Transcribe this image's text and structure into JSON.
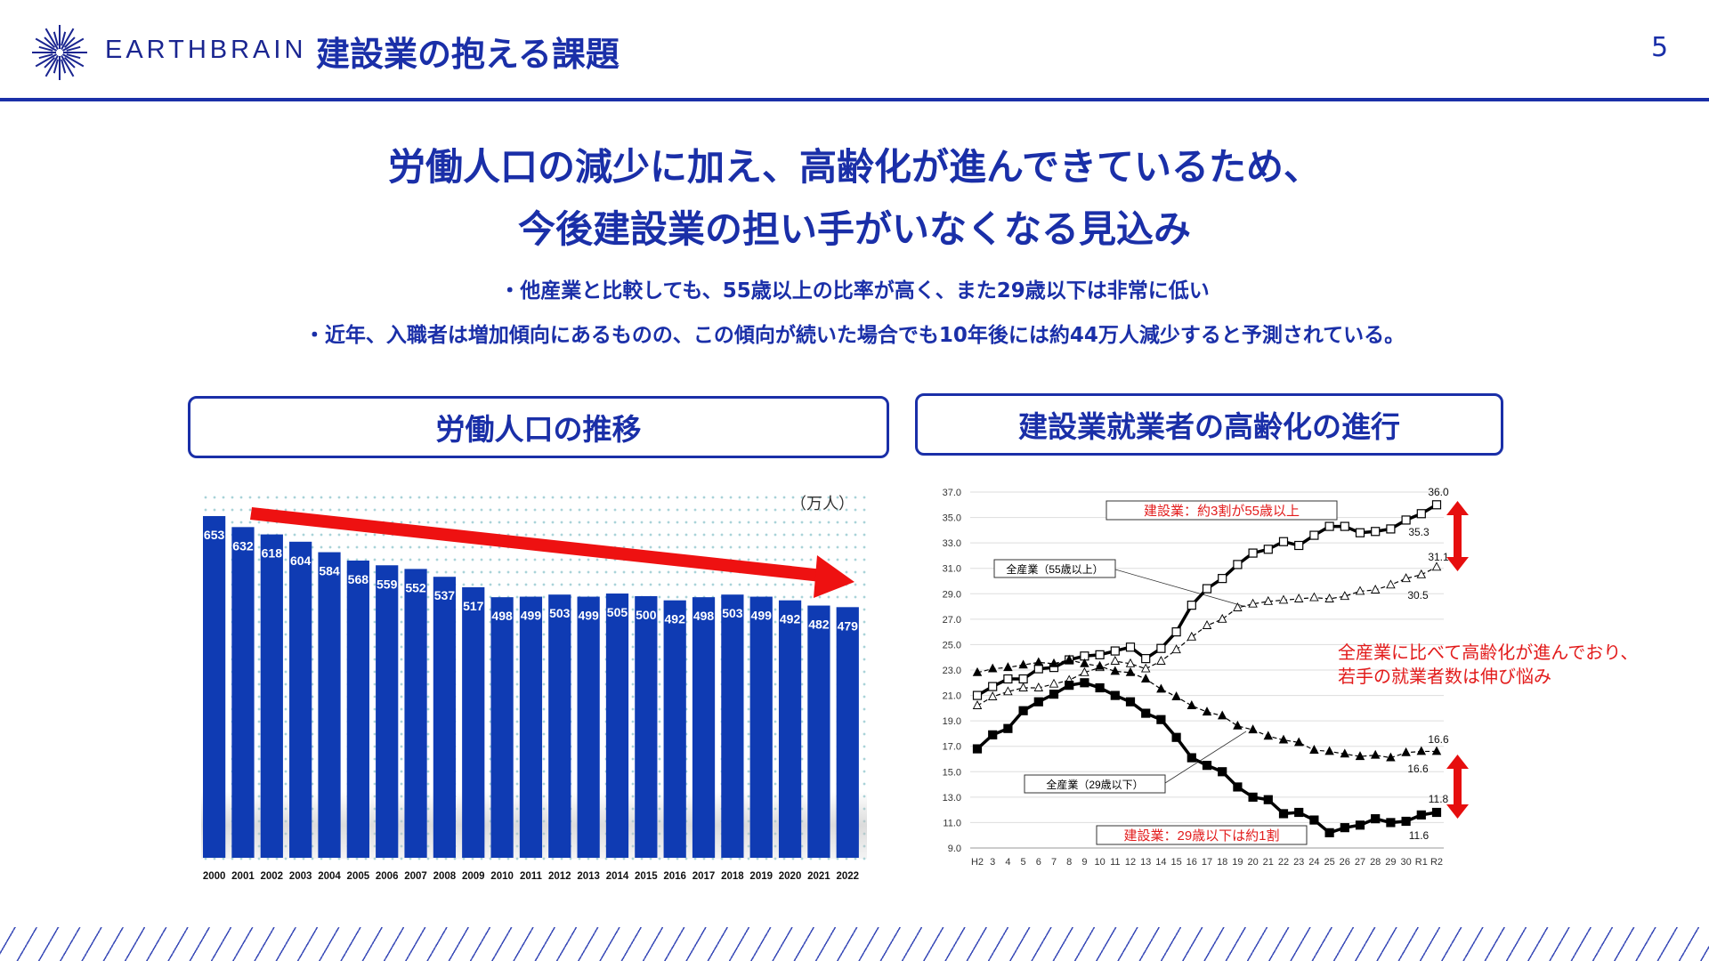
{
  "header": {
    "brand": "EARTHBRAIN",
    "title": "建設業の抱える課題",
    "page_number": "5"
  },
  "headline": {
    "line1": "労働人口の減少に加え、高齢化が進んできているため、",
    "line2": "今後建設業の担い手がいなくなる見込み"
  },
  "bullets": [
    "・他産業と比較しても、55歳以上の比率が高く、また29歳以下は非常に低い",
    "・近年、入職者は増加傾向にあるものの、この傾向が続いた場合でも10年後には約44万人減少すると予測されている。"
  ],
  "sections": {
    "left_title": "労働人口の推移",
    "right_title": "建設業就業者の高齢化の進行"
  },
  "colors": {
    "brand_blue": "#1a2fa8",
    "bar_blue": "#0f3bb3",
    "accent_red": "#e21b1b"
  },
  "chart_data": [
    {
      "type": "bar",
      "unit_label": "（万人）",
      "categories": [
        "2000",
        "2001",
        "2002",
        "2003",
        "2004",
        "2005",
        "2006",
        "2007",
        "2008",
        "2009",
        "2010",
        "2011",
        "2012",
        "2013",
        "2014",
        "2015",
        "2016",
        "2017",
        "2018",
        "2019",
        "2020",
        "2021",
        "2022"
      ],
      "values": [
        653,
        632,
        618,
        604,
        584,
        568,
        559,
        552,
        537,
        517,
        498,
        499,
        503,
        499,
        505,
        500,
        492,
        498,
        503,
        499,
        492,
        482,
        479
      ],
      "ylim": [
        0,
        700
      ],
      "annotation": "downward trend arrow"
    },
    {
      "type": "line",
      "categories": [
        "H2",
        "3",
        "4",
        "5",
        "6",
        "7",
        "8",
        "9",
        "10",
        "11",
        "12",
        "13",
        "14",
        "15",
        "16",
        "17",
        "18",
        "19",
        "20",
        "21",
        "22",
        "23",
        "24",
        "25",
        "26",
        "27",
        "28",
        "29",
        "30",
        "R1",
        "R2"
      ],
      "y_ticks": [
        "9.0",
        "11.0",
        "13.0",
        "15.0",
        "17.0",
        "19.0",
        "21.0",
        "23.0",
        "25.0",
        "27.0",
        "29.0",
        "31.0",
        "33.0",
        "35.0",
        "37.0"
      ],
      "ylim": [
        9,
        37
      ],
      "grid": true,
      "series": [
        {
          "name": "建設業：約3割が55歳以上",
          "marker": "open-square",
          "style": "solid",
          "values": [
            21.0,
            21.7,
            22.3,
            22.3,
            23.1,
            23.2,
            23.8,
            24.1,
            24.2,
            24.5,
            24.8,
            23.9,
            24.7,
            26.0,
            28.1,
            29.4,
            30.2,
            31.3,
            32.2,
            32.5,
            33.1,
            32.8,
            33.6,
            34.3,
            34.3,
            33.8,
            33.9,
            34.1,
            34.8,
            35.3,
            36.0
          ]
        },
        {
          "name": "全産業（55歳以上）",
          "marker": "open-triangle",
          "style": "dashed",
          "values": [
            20.2,
            20.9,
            21.3,
            21.6,
            21.6,
            21.9,
            22.2,
            22.8,
            23.2,
            23.7,
            23.5,
            23.1,
            23.7,
            24.6,
            25.6,
            26.5,
            27.0,
            27.9,
            28.2,
            28.4,
            28.5,
            28.6,
            28.7,
            28.6,
            28.8,
            29.2,
            29.3,
            29.7,
            30.2,
            30.5,
            31.1
          ]
        },
        {
          "name": "全産業（29歳以下）",
          "marker": "filled-triangle",
          "style": "dashed",
          "values": [
            22.8,
            23.1,
            23.2,
            23.4,
            23.6,
            23.5,
            23.8,
            23.5,
            23.3,
            22.9,
            22.8,
            22.3,
            21.5,
            20.9,
            20.2,
            19.7,
            19.4,
            18.6,
            18.3,
            17.8,
            17.5,
            17.3,
            16.7,
            16.6,
            16.4,
            16.2,
            16.3,
            16.1,
            16.5,
            16.6,
            16.6
          ]
        },
        {
          "name": "建設業：29歳以下は約1割",
          "marker": "filled-square",
          "style": "solid",
          "values": [
            16.8,
            17.9,
            18.4,
            19.8,
            20.5,
            21.1,
            21.8,
            22.0,
            21.6,
            21.0,
            20.5,
            19.6,
            19.1,
            17.7,
            16.1,
            15.5,
            15.0,
            13.8,
            13.0,
            12.8,
            11.7,
            11.8,
            11.2,
            10.2,
            10.6,
            10.8,
            11.3,
            11.0,
            11.1,
            11.6,
            11.8
          ]
        }
      ],
      "data_labels": [
        "36.0",
        "35.3",
        "31.1",
        "30.5",
        "16.6",
        "16.6",
        "11.8",
        "11.6"
      ],
      "note": "全産業に比べて高齢化が進んでおり、\n若手の就業者数は伸び悩み",
      "note_lines": [
        "全産業に比べて高齢化が進んでおり、",
        "若手の就業者数は伸び悩み"
      ]
    }
  ]
}
